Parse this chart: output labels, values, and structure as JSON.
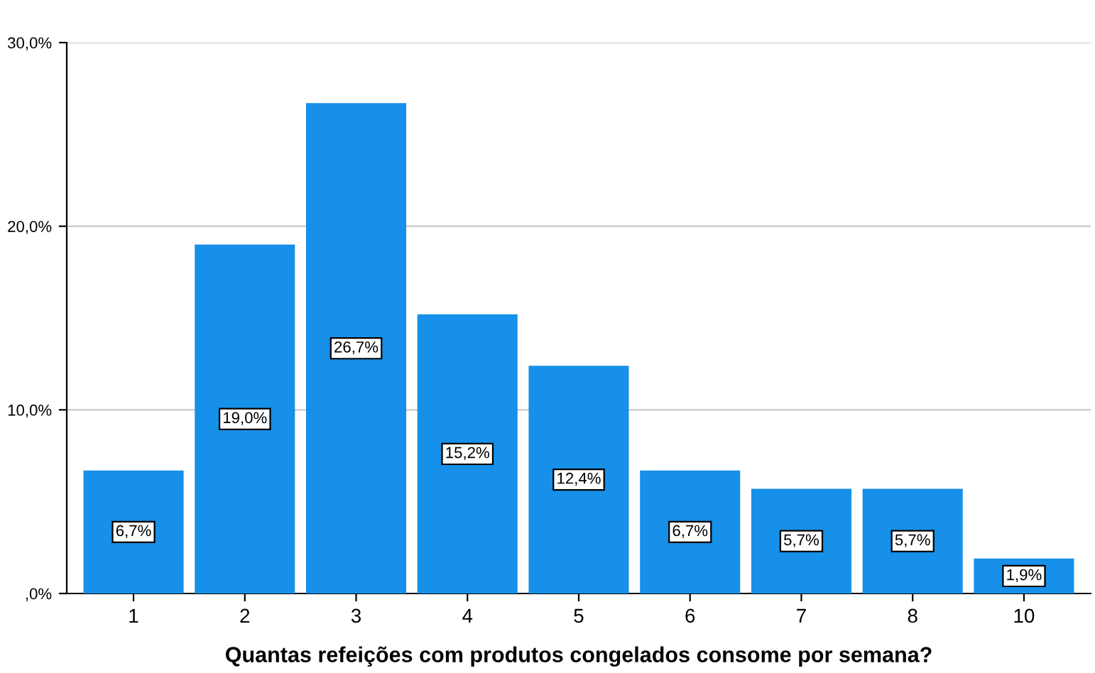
{
  "chart_data": {
    "type": "bar",
    "xlabel": "Quantas refeições com produtos congelados consome por semana?",
    "categories": [
      "1",
      "2",
      "3",
      "4",
      "5",
      "6",
      "7",
      "8",
      "10"
    ],
    "values": [
      6.7,
      19.0,
      26.7,
      15.2,
      12.4,
      6.7,
      5.7,
      5.7,
      1.9
    ],
    "value_labels": [
      "6,7%",
      "19,0%",
      "26,7%",
      "15,2%",
      "12,4%",
      "6,7%",
      "5,7%",
      "5,7%",
      "1,9%"
    ],
    "color": "#1690e8",
    "ylim": [
      0,
      30
    ],
    "yticks": [
      {
        "value": 0,
        "label": ",0%"
      },
      {
        "value": 10,
        "label": "10,0%"
      },
      {
        "value": 20,
        "label": "20,0%"
      },
      {
        "value": 30,
        "label": "30,0%"
      }
    ],
    "grid": "y"
  }
}
